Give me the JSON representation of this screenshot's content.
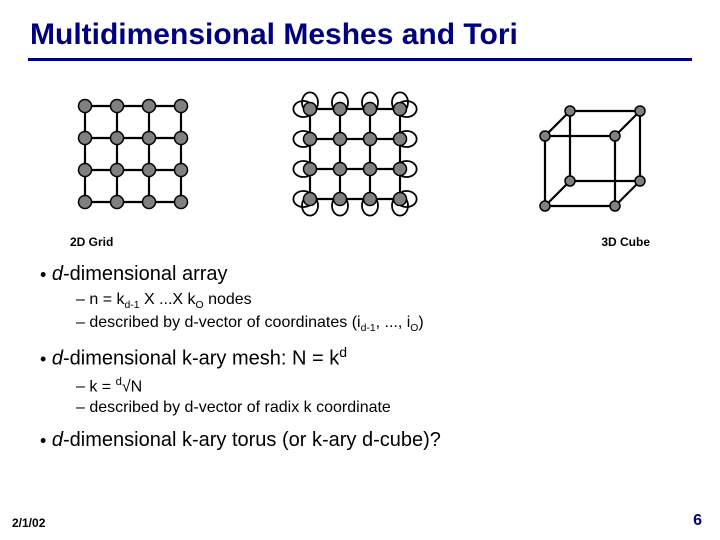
{
  "title": {
    "text": "Multidimensional Meshes and Tori",
    "color": "#000080",
    "fontsize": 30
  },
  "underline_color": "#000080",
  "diagrams": {
    "grid": {
      "type": "network",
      "cols": 4,
      "rows": 4,
      "node_radius": 6.5,
      "node_fill": "#808080",
      "node_stroke": "#000000",
      "edge_stroke": "#000000",
      "edge_width": 2.2,
      "caption": "2D Grid"
    },
    "torus": {
      "type": "network",
      "cols": 4,
      "rows": 4,
      "node_radius": 6.5,
      "node_fill": "#808080",
      "node_stroke": "#000000",
      "edge_stroke": "#000000",
      "edge_width": 2.2,
      "wrap_arc": true
    },
    "cube": {
      "type": "network",
      "node_radius": 5,
      "node_fill": "#808080",
      "node_stroke": "#000000",
      "edge_stroke": "#000000",
      "edge_width": 2.2,
      "caption": "3D Cube"
    }
  },
  "bullets": {
    "b1": {
      "text": "d",
      "rest": "-dimensional array"
    },
    "b1_sub1_pre": "n = k",
    "b1_sub1_mid": " X ...X k",
    "b1_sub1_end": " nodes",
    "b1_sub2_pre": "described by d-vector of coordinates (i",
    "b1_sub2_mid": ", ..., i",
    "b1_sub2_end": ")",
    "b2_pre": "d",
    "b2_mid": "-dimensional k-ary mesh: N = k",
    "b2_sub1": "k = ",
    "b2_sub1_root": "√N",
    "b2_sub2": "described by d-vector of radix k coordinate",
    "b3_pre": "d",
    "b3_rest": "-dimensional k-ary torus (or k-ary d-cube)?"
  },
  "footer": {
    "date": "2/1/02",
    "page": "6",
    "page_color": "#000080"
  }
}
